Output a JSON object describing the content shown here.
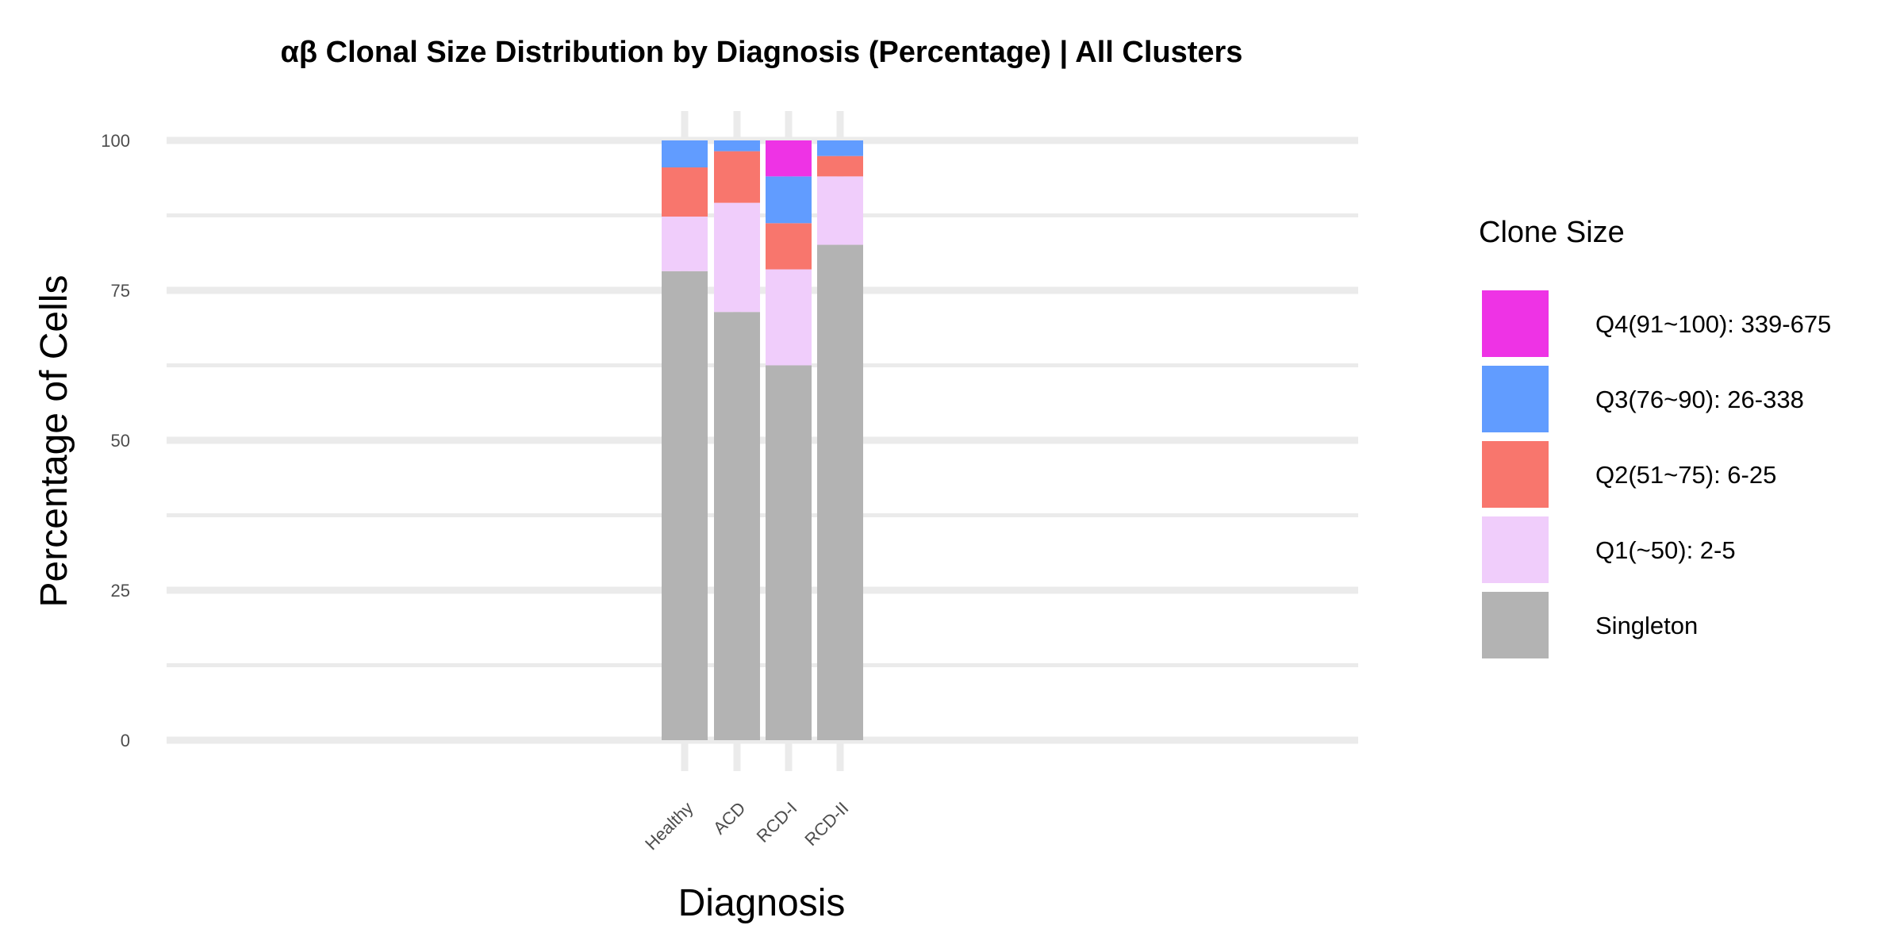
{
  "chart_data": {
    "type": "bar",
    "stacked": true,
    "title": "αβ Clonal Size Distribution by Diagnosis (Percentage) | All Clusters",
    "xlabel": "Diagnosis",
    "ylabel": "Percentage of Cells",
    "ylim": [
      0,
      100
    ],
    "yticks": [
      "0",
      "25",
      "50",
      "75",
      "100"
    ],
    "categories": [
      "Healthy",
      "ACD",
      "RCD-I",
      "RCD-II"
    ],
    "grid": true,
    "legend_position": "right",
    "legend_title": "Clone Size",
    "series": [
      {
        "name": "Singleton",
        "color": "#b3b3b3",
        "values": [
          78.2,
          71.4,
          62.5,
          82.6
        ]
      },
      {
        "name": "Q1(~50): 2-5",
        "color": "#f0cdfb",
        "values": [
          9.1,
          18.2,
          16.0,
          11.4
        ]
      },
      {
        "name": "Q2(51~75): 6-25",
        "color": "#f8766d",
        "values": [
          8.2,
          8.6,
          7.7,
          3.4
        ]
      },
      {
        "name": "Q3(76~90): 26-338",
        "color": "#619cff",
        "values": [
          4.5,
          1.8,
          7.8,
          2.6
        ]
      },
      {
        "name": "Q4(91~100): 339-675",
        "color": "#ee33e5",
        "values": [
          0,
          0,
          6.0,
          0
        ]
      }
    ]
  }
}
